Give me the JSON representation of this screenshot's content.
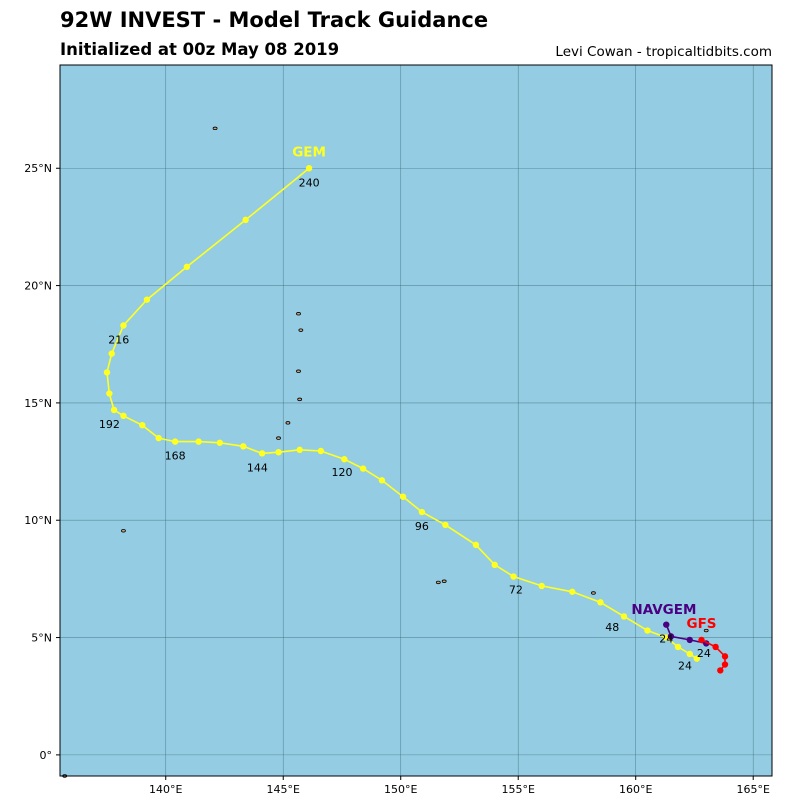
{
  "header": {
    "title": "92W INVEST - Model Track Guidance",
    "subtitle": "Initialized at 00z May 08 2019",
    "credit": "Levi Cowan - tropicaltidbits.com"
  },
  "colors": {
    "ocean": "#94cde3",
    "land": "#c4a484",
    "grid": "#3f6b7a",
    "gem": "#ffff22",
    "navgem": "#4b0082",
    "gfs": "#ff0000"
  },
  "map": {
    "lon_range": [
      135.5,
      165.8
    ],
    "lat_range": [
      -0.9,
      29.4
    ],
    "lon_ticks": [
      140,
      145,
      150,
      155,
      160,
      165
    ],
    "lat_ticks": [
      0,
      5,
      10,
      15,
      20,
      25
    ],
    "lon_tick_labels": [
      "140°E",
      "145°E",
      "150°E",
      "155°E",
      "160°E",
      "165°E"
    ],
    "lat_tick_labels": [
      "0°",
      "5°N",
      "10°N",
      "15°N",
      "20°N",
      "25°N"
    ]
  },
  "chart_data": {
    "type": "line",
    "series": [
      {
        "name": "GEM",
        "color": "#ffff22",
        "points": [
          {
            "lon": 162.6,
            "lat": 4.1
          },
          {
            "lon": 162.3,
            "lat": 4.3
          },
          {
            "lon": 161.8,
            "lat": 4.6
          },
          {
            "lon": 161.3,
            "lat": 5.0
          },
          {
            "lon": 160.5,
            "lat": 5.3
          },
          {
            "lon": 159.5,
            "lat": 5.9
          },
          {
            "lon": 158.5,
            "lat": 6.5
          },
          {
            "lon": 157.3,
            "lat": 6.95
          },
          {
            "lon": 156.0,
            "lat": 7.2
          },
          {
            "lon": 154.8,
            "lat": 7.6
          },
          {
            "lon": 154.0,
            "lat": 8.1
          },
          {
            "lon": 153.2,
            "lat": 8.95
          },
          {
            "lon": 151.9,
            "lat": 9.8
          },
          {
            "lon": 150.9,
            "lat": 10.35
          },
          {
            "lon": 150.1,
            "lat": 11.0
          },
          {
            "lon": 149.2,
            "lat": 11.7
          },
          {
            "lon": 148.4,
            "lat": 12.2
          },
          {
            "lon": 147.6,
            "lat": 12.6
          },
          {
            "lon": 146.6,
            "lat": 12.95
          },
          {
            "lon": 145.7,
            "lat": 13.0
          },
          {
            "lon": 144.8,
            "lat": 12.9
          },
          {
            "lon": 144.1,
            "lat": 12.85
          },
          {
            "lon": 143.3,
            "lat": 13.15
          },
          {
            "lon": 142.3,
            "lat": 13.3
          },
          {
            "lon": 141.4,
            "lat": 13.35
          },
          {
            "lon": 140.4,
            "lat": 13.35
          },
          {
            "lon": 139.7,
            "lat": 13.5
          },
          {
            "lon": 139.0,
            "lat": 14.05
          },
          {
            "lon": 138.2,
            "lat": 14.45
          },
          {
            "lon": 137.8,
            "lat": 14.7
          },
          {
            "lon": 137.6,
            "lat": 15.4
          },
          {
            "lon": 137.5,
            "lat": 16.3
          },
          {
            "lon": 137.7,
            "lat": 17.1
          },
          {
            "lon": 138.2,
            "lat": 18.3
          },
          {
            "lon": 139.2,
            "lat": 19.4
          },
          {
            "lon": 140.9,
            "lat": 20.8
          },
          {
            "lon": 143.4,
            "lat": 22.8
          },
          {
            "lon": 146.1,
            "lat": 25.0
          }
        ],
        "labels": [
          {
            "text": "24",
            "lon": 162.1,
            "lat": 3.8
          },
          {
            "text": "48",
            "lon": 159.0,
            "lat": 5.45
          },
          {
            "text": "72",
            "lon": 154.9,
            "lat": 7.05
          },
          {
            "text": "96",
            "lon": 150.9,
            "lat": 9.75
          },
          {
            "text": "120",
            "lon": 147.5,
            "lat": 12.05
          },
          {
            "text": "144",
            "lon": 143.9,
            "lat": 12.25
          },
          {
            "text": "168",
            "lon": 140.4,
            "lat": 12.75
          },
          {
            "text": "192",
            "lon": 137.6,
            "lat": 14.1
          },
          {
            "text": "216",
            "lon": 138.0,
            "lat": 17.7
          },
          {
            "text": "240",
            "lon": 146.1,
            "lat": 24.4
          }
        ],
        "name_label": {
          "lon": 146.1,
          "lat": 25.5
        }
      },
      {
        "name": "NAVGEM",
        "color": "#4b0082",
        "points": [
          {
            "lon": 161.3,
            "lat": 5.55
          },
          {
            "lon": 161.5,
            "lat": 5.05
          },
          {
            "lon": 162.3,
            "lat": 4.9
          },
          {
            "lon": 163.0,
            "lat": 4.75
          }
        ],
        "labels": [
          {
            "text": "24",
            "lon": 161.3,
            "lat": 4.95
          }
        ],
        "name_label": {
          "lon": 161.2,
          "lat": 6.0
        }
      },
      {
        "name": "GFS",
        "color": "#ff0000",
        "points": [
          {
            "lon": 162.8,
            "lat": 4.9
          },
          {
            "lon": 163.4,
            "lat": 4.6
          },
          {
            "lon": 163.8,
            "lat": 4.2
          },
          {
            "lon": 163.8,
            "lat": 3.85
          },
          {
            "lon": 163.6,
            "lat": 3.6
          }
        ],
        "labels": [
          {
            "text": "24",
            "lon": 162.9,
            "lat": 4.35
          }
        ],
        "name_label": {
          "lon": 162.8,
          "lat": 5.4
        }
      }
    ]
  },
  "islands": [
    {
      "lon": 142.1,
      "lat": 26.7
    },
    {
      "lon": 145.65,
      "lat": 18.8
    },
    {
      "lon": 145.75,
      "lat": 18.1
    },
    {
      "lon": 145.65,
      "lat": 16.35
    },
    {
      "lon": 145.7,
      "lat": 15.15
    },
    {
      "lon": 145.2,
      "lat": 14.15
    },
    {
      "lon": 144.8,
      "lat": 13.5
    },
    {
      "lon": 138.2,
      "lat": 9.55
    },
    {
      "lon": 151.6,
      "lat": 7.35
    },
    {
      "lon": 151.85,
      "lat": 7.4
    },
    {
      "lon": 158.2,
      "lat": 6.9
    },
    {
      "lon": 163.0,
      "lat": 5.3
    },
    {
      "lon": 135.7,
      "lat": -0.9
    }
  ]
}
